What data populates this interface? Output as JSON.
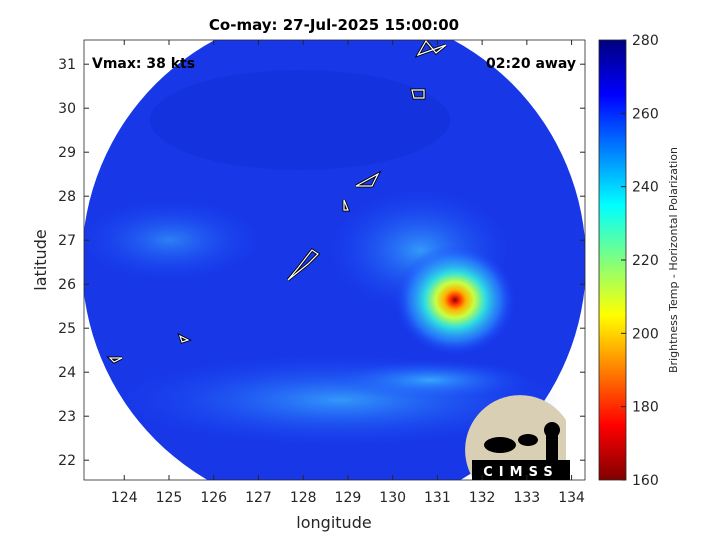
{
  "title": "Co-may: 27-Jul-2025 15:00:00",
  "annotations": {
    "intensity": "Vmax: 38 kts",
    "time_away": "02:20 away"
  },
  "logo": "CIMSS",
  "map": {
    "x_label": "longitude",
    "y_label": "latitude",
    "xlim": [
      123.1,
      134.3
    ],
    "xticks": [
      124,
      125,
      126,
      127,
      128,
      129,
      130,
      131,
      132,
      133,
      134
    ],
    "ylim": [
      21.55,
      31.55
    ],
    "yticks": [
      22,
      23,
      24,
      25,
      26,
      27,
      28,
      29,
      30,
      31
    ]
  },
  "colorbar": {
    "label": "Brightness Temp - Horizontal Polarization",
    "lim": [
      160,
      280
    ],
    "ticks": [
      160,
      180,
      200,
      220,
      240,
      260,
      280
    ]
  }
}
